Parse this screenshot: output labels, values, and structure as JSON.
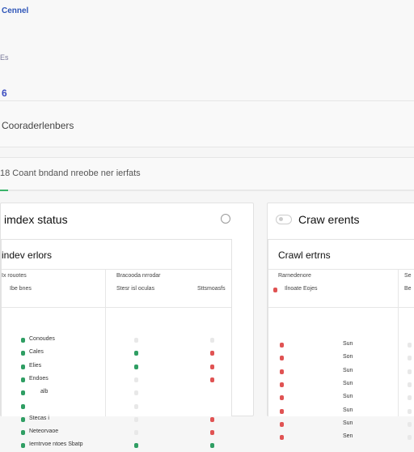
{
  "header": {
    "brand": "Cennel",
    "mini": "Es",
    "number": "6"
  },
  "search_bar": {
    "text": "Cooraderlenbers"
  },
  "info_bar": {
    "text": "18 Coant bndand nreobe ner ierfats"
  },
  "progress": {
    "percent": 2
  },
  "colors": {
    "ok": "#2f9e63",
    "error": "#e05353",
    "brand": "#2f56b8"
  },
  "index_panel": {
    "title": "imdex status",
    "subtitle": "indev erlors",
    "headers": {
      "col1": "Ix rouotes",
      "col2": "Bracooda nrrodar",
      "col1_sub": "Ibe bnes",
      "col2_sub": "Stesr isl oculas",
      "col3_sub": "Sttsmoasfs"
    },
    "rows": [
      {
        "label": "Conoudes",
        "a": "empty",
        "b": "empty"
      },
      {
        "label": "Cales",
        "a": "ok",
        "b": "error"
      },
      {
        "label": "Elies",
        "a": "ok",
        "b": "error"
      },
      {
        "label": "Endoes",
        "a": "empty",
        "b": "error"
      },
      {
        "label": "alb",
        "a": "empty",
        "b": "none"
      },
      {
        "label": "",
        "a": "empty",
        "b": "none"
      },
      {
        "label": "Stecas i",
        "a": "empty",
        "b": "error"
      },
      {
        "label": "Neteorvaoe",
        "a": "empty",
        "b": "error"
      },
      {
        "label": "Iemtrvoe ntoes Sbatp",
        "a": "ok",
        "b": "ok"
      }
    ]
  },
  "crawl_panel": {
    "title": "Craw erents",
    "subtitle": "Crawl ertrns",
    "headers": {
      "col1": "Rarnedenore",
      "col2": "Se",
      "col1_sub": "Ilnoate Eojes",
      "col2_sub": "Be"
    },
    "rows": [
      {
        "value": "Sun"
      },
      {
        "value": "Son"
      },
      {
        "value": "Sun"
      },
      {
        "value": "Sun"
      },
      {
        "value": "Sun"
      },
      {
        "value": "Sun"
      },
      {
        "value": "Sun"
      },
      {
        "value": "Sen"
      }
    ]
  }
}
